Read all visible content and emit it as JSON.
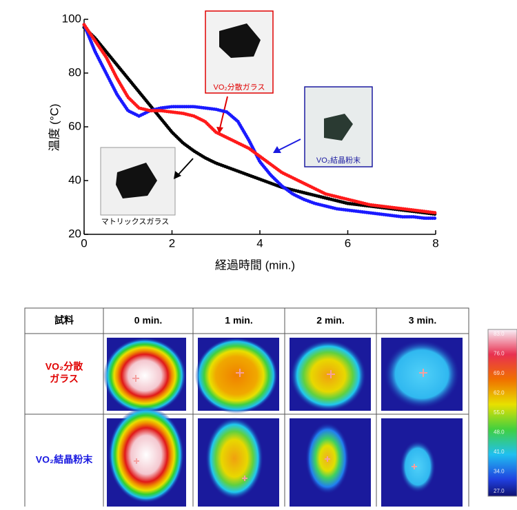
{
  "chart_data": {
    "type": "line",
    "xlabel": "経過時間 (min.)",
    "ylabel": "温度 (°C)",
    "annotations": [
      "VO₂分散ガラス",
      "VO₂結晶粉末",
      "マトリックスガラス"
    ],
    "x": [
      0,
      0.25,
      0.5,
      0.75,
      1,
      1.25,
      1.5,
      1.75,
      2,
      2.25,
      2.5,
      2.75,
      3,
      3.25,
      3.5,
      3.75,
      4,
      4.25,
      4.5,
      4.75,
      5,
      5.25,
      5.5,
      5.75,
      6,
      6.25,
      6.5,
      6.75,
      7,
      7.25,
      7.5,
      7.75,
      8
    ],
    "series": [
      {
        "color": "#000000",
        "values": [
          97,
          93,
          88,
          83,
          78,
          73,
          68,
          63,
          58,
          54,
          51,
          48.5,
          46.5,
          45,
          43.5,
          42,
          40.5,
          39,
          37.5,
          36.5,
          35.5,
          34.5,
          33.5,
          32.5,
          31.5,
          31,
          30.5,
          30,
          29.5,
          29,
          28.5,
          28,
          27.5
        ]
      },
      {
        "color": "#1a1aff",
        "values": [
          98,
          88,
          80,
          72,
          66,
          64,
          66,
          67,
          67.5,
          67.5,
          67.5,
          67,
          66.5,
          65.5,
          62,
          55,
          47,
          42,
          38,
          35,
          33,
          31.5,
          30.5,
          29.5,
          29,
          28.5,
          28,
          27.5,
          27,
          26.5,
          26.5,
          26,
          26
        ]
      },
      {
        "color": "#ff1a1a",
        "values": [
          98,
          92,
          86,
          78,
          71,
          67,
          66,
          66,
          65.5,
          65,
          64,
          62,
          58,
          56,
          54,
          52,
          49,
          46,
          43,
          41,
          39,
          37,
          35,
          34,
          33,
          32,
          31,
          30.5,
          30,
          29.5,
          29,
          28.5,
          28
        ]
      }
    ],
    "xlim": [
      0,
      8
    ],
    "xticks": [
      0,
      2,
      4,
      6,
      8
    ],
    "ylim": [
      20,
      100
    ],
    "yticks": [
      20,
      40,
      60,
      80,
      100
    ]
  },
  "table": {
    "header": [
      "試料",
      "0 min.",
      "1 min.",
      "2 min.",
      "3 min."
    ],
    "row_labels": [
      [
        "VO₂分散",
        "ガラス"
      ],
      [
        "VO₂結晶粉末"
      ]
    ]
  },
  "colorbar": {
    "labels": [
      "83.0",
      "76.0",
      "69.0",
      "62.0",
      "55.0",
      "48.0",
      "41.0",
      "34.0",
      "27.0"
    ]
  }
}
